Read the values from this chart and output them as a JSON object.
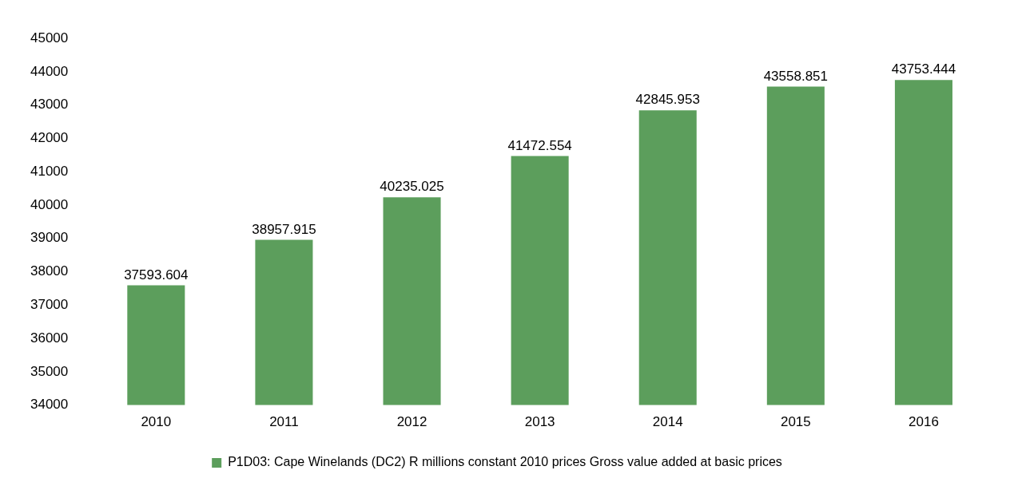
{
  "chart_data": {
    "type": "bar",
    "categories": [
      "2010",
      "2011",
      "2012",
      "2013",
      "2014",
      "2015",
      "2016"
    ],
    "series": [
      {
        "name": "P1D03: Cape Winelands (DC2) R millions constant 2010 prices Gross value added at basic prices",
        "color": "#5c9e5c",
        "values": [
          37593.604,
          38957.915,
          40235.025,
          41472.554,
          42845.953,
          43558.851,
          43753.444
        ]
      }
    ],
    "ylim": [
      34000,
      45000
    ],
    "yticks": [
      34000,
      35000,
      36000,
      37000,
      38000,
      39000,
      40000,
      41000,
      42000,
      43000,
      44000,
      45000
    ],
    "grid": false,
    "legend": "bottom",
    "data_labels": true
  }
}
